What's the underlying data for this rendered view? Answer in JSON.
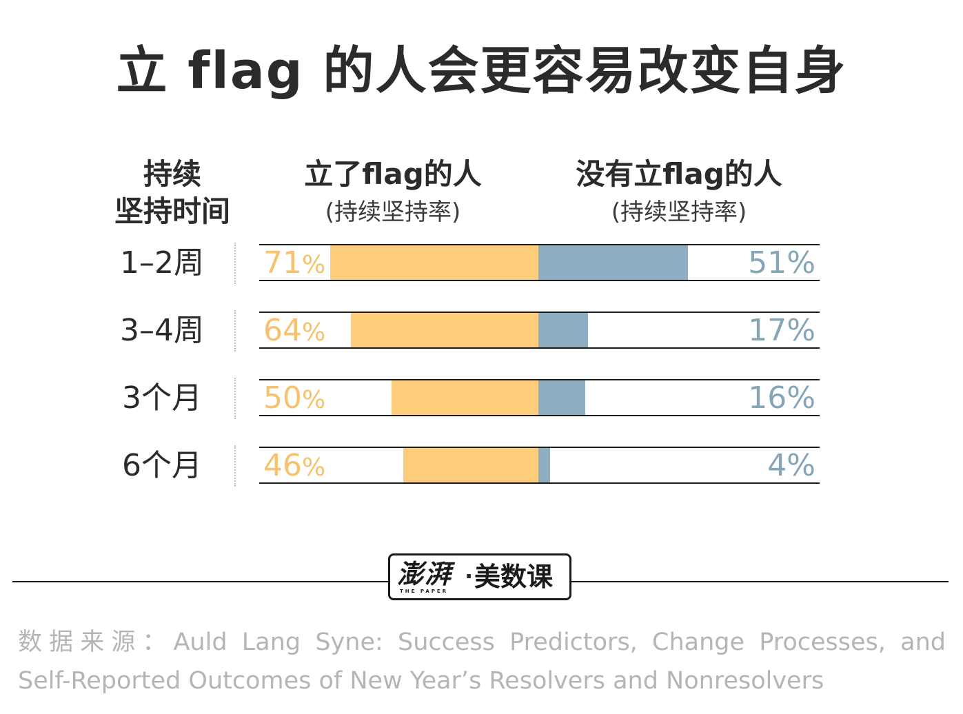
{
  "title": "立 flag 的人会更容易改变自身",
  "headers": {
    "duration_line1": "持续",
    "duration_line2": "坚持时间",
    "with_flag": "立了flag的人",
    "with_flag_sub": "(持续坚持率)",
    "without_flag": "没有立flag的人",
    "without_flag_sub": "(持续坚持率)"
  },
  "colors": {
    "with_flag": "#fdcd7b",
    "without_flag": "#8eafc2",
    "with_flag_text": "#f6c26e",
    "without_flag_text": "#86a6b8"
  },
  "chart_data": {
    "type": "bar",
    "orientation": "horizontal-diverging",
    "categories": [
      "1–2周",
      "3–4周",
      "3个月",
      "6个月"
    ],
    "series": [
      {
        "name": "立了flag的人",
        "values": [
          71,
          64,
          50,
          46
        ]
      },
      {
        "name": "没有立flag的人",
        "values": [
          51,
          17,
          16,
          4
        ]
      }
    ],
    "unit": "%",
    "xlim": [
      0,
      100
    ]
  },
  "logo": {
    "brand": "澎湃",
    "brand_small": "THE PAPER",
    "separator": "·",
    "product": "美数课"
  },
  "source": {
    "line1": "数据来源：Auld Lang Syne: Success Predictors, Change Processes, and",
    "line2": "Self-Reported Outcomes of New Year’s Resolvers and Nonresolvers"
  }
}
